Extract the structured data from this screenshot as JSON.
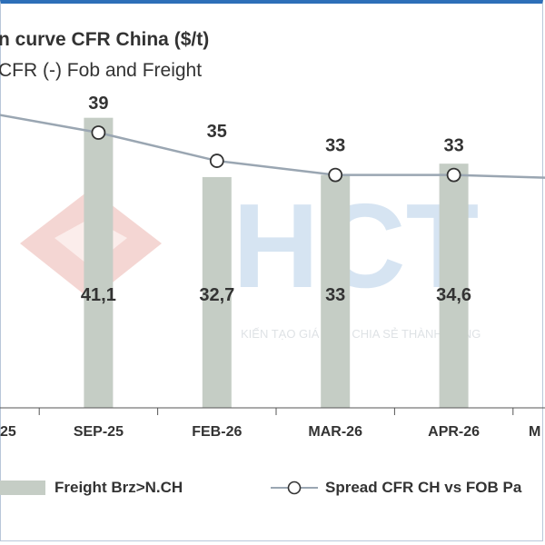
{
  "chart_data": {
    "type": "bar",
    "title": "n curve CFR China ($/t)",
    "subtitle": "CFR (-) Fob and Freight",
    "categories": [
      "25",
      "SEP-25",
      "FEB-26",
      "MAR-26",
      "APR-26",
      "M"
    ],
    "series": [
      {
        "name": "Freight Brz>N.CH",
        "type": "bar",
        "color": "#c5cdc5",
        "values": [
          null,
          41.1,
          32.7,
          33,
          34.6,
          null
        ],
        "labels": [
          "",
          "41,1",
          "32,7",
          "33",
          "34,6",
          ""
        ]
      },
      {
        "name": "Spread CFR CH vs FOB Pa",
        "type": "line",
        "color": "#9aa6b2",
        "values": [
          42,
          39,
          35,
          33,
          33,
          32.5
        ],
        "labels": [
          "",
          "39",
          "35",
          "33",
          "33",
          ""
        ]
      }
    ],
    "ylim": [
      0,
      52
    ],
    "grid": false,
    "legend": "bottom"
  },
  "watermark": {
    "text": "HCT",
    "tagline": "KIẾN TẠO GIÁ TRỊ - CHIA SẺ THÀNH CÔNG"
  }
}
